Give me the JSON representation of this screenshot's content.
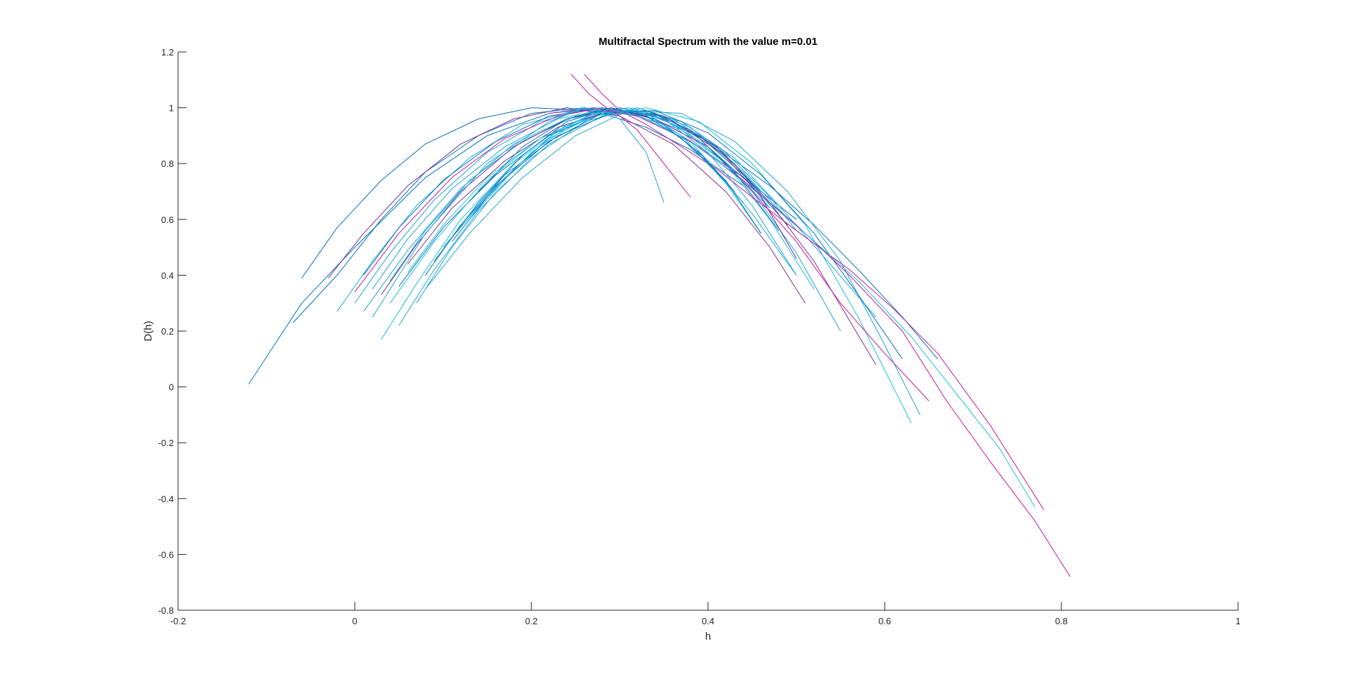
{
  "chart_data": {
    "type": "line",
    "title": "Multifractal Spectrum with the value m=0.01",
    "xlabel": "h",
    "ylabel": "D(h)",
    "xlim": [
      -0.2,
      1
    ],
    "ylim": [
      -0.8,
      1.2
    ],
    "xticks": [
      -0.2,
      0,
      0.2,
      0.4,
      0.6,
      0.8,
      1
    ],
    "yticks": [
      -0.8,
      -0.6,
      -0.4,
      -0.2,
      0,
      0.2,
      0.4,
      0.6,
      0.8,
      1,
      1.2
    ],
    "xtick_labels": [
      "-0.2",
      "0",
      "0.2",
      "0.4",
      "0.6",
      "0.8",
      "1"
    ],
    "ytick_labels": [
      "-0.8",
      "-0.6",
      "-0.4",
      "-0.2",
      "0",
      "0.2",
      "0.4",
      "0.6",
      "0.8",
      "1",
      "1.2"
    ],
    "grid": false,
    "box": false,
    "colors": {
      "blue": "#0072BD",
      "cyan": "#1AA7D9",
      "light_cyan": "#18C0DE",
      "purple": "#7E2F8E",
      "magenta": "#C2189C",
      "axis": "#262626"
    },
    "series": [
      {
        "color": "blue",
        "x": [
          -0.12,
          -0.06,
          0.0,
          0.08,
          0.15,
          0.22,
          0.28,
          0.34,
          0.4,
          0.47,
          0.52,
          0.57,
          0.62,
          0.66
        ],
        "y": [
          0.01,
          0.3,
          0.5,
          0.75,
          0.9,
          0.98,
          1.0,
          0.97,
          0.88,
          0.72,
          0.58,
          0.42,
          0.25,
          0.1
        ]
      },
      {
        "color": "blue",
        "x": [
          -0.06,
          -0.02,
          0.03,
          0.08,
          0.14,
          0.2,
          0.27,
          0.33,
          0.38,
          0.44
        ],
        "y": [
          0.39,
          0.57,
          0.74,
          0.87,
          0.96,
          1.0,
          0.99,
          0.93,
          0.85,
          0.72
        ]
      },
      {
        "color": "blue",
        "x": [
          -0.07,
          -0.02,
          0.03,
          0.08,
          0.14,
          0.2,
          0.26,
          0.32,
          0.38,
          0.44,
          0.5
        ],
        "y": [
          0.23,
          0.4,
          0.6,
          0.77,
          0.9,
          0.98,
          1.0,
          0.97,
          0.88,
          0.75,
          0.6
        ]
      },
      {
        "color": "cyan",
        "x": [
          -0.02,
          0.02,
          0.07,
          0.13,
          0.19,
          0.25,
          0.31,
          0.37,
          0.42,
          0.47
        ],
        "y": [
          0.27,
          0.45,
          0.65,
          0.82,
          0.94,
          0.99,
          0.99,
          0.92,
          0.8,
          0.64
        ]
      },
      {
        "color": "cyan",
        "x": [
          0.0,
          0.04,
          0.09,
          0.15,
          0.21,
          0.27,
          0.33,
          0.39,
          0.44,
          0.49
        ],
        "y": [
          0.3,
          0.48,
          0.67,
          0.84,
          0.95,
          1.0,
          0.98,
          0.9,
          0.77,
          0.6
        ]
      },
      {
        "color": "blue",
        "x": [
          0.01,
          0.05,
          0.1,
          0.16,
          0.22,
          0.28,
          0.34,
          0.4,
          0.45
        ],
        "y": [
          0.4,
          0.57,
          0.74,
          0.88,
          0.97,
          1.0,
          0.96,
          0.86,
          0.72
        ]
      },
      {
        "color": "light_cyan",
        "x": [
          0.03,
          0.07,
          0.12,
          0.18,
          0.24,
          0.3,
          0.36,
          0.41,
          0.46
        ],
        "y": [
          0.17,
          0.37,
          0.6,
          0.8,
          0.94,
          1.0,
          0.96,
          0.86,
          0.7
        ]
      },
      {
        "color": "cyan",
        "x": [
          0.05,
          0.09,
          0.14,
          0.2,
          0.26,
          0.32,
          0.37,
          0.42,
          0.47,
          0.5
        ],
        "y": [
          0.22,
          0.42,
          0.63,
          0.82,
          0.95,
          1.0,
          0.95,
          0.84,
          0.68,
          0.56
        ]
      },
      {
        "color": "cyan",
        "x": [
          0.07,
          0.11,
          0.16,
          0.22,
          0.28,
          0.33,
          0.38,
          0.43,
          0.47
        ],
        "y": [
          0.3,
          0.5,
          0.7,
          0.87,
          0.97,
          0.99,
          0.93,
          0.8,
          0.64
        ]
      },
      {
        "color": "blue",
        "x": [
          0.08,
          0.12,
          0.17,
          0.23,
          0.29,
          0.34,
          0.39,
          0.44,
          0.49
        ],
        "y": [
          0.4,
          0.58,
          0.76,
          0.9,
          0.98,
          0.98,
          0.9,
          0.76,
          0.58
        ]
      },
      {
        "color": "cyan",
        "x": [
          0.02,
          0.06,
          0.11,
          0.17,
          0.23,
          0.29,
          0.35,
          0.4,
          0.45,
          0.5,
          0.55
        ],
        "y": [
          0.35,
          0.53,
          0.71,
          0.86,
          0.96,
          1.0,
          0.96,
          0.86,
          0.7,
          0.48,
          0.2
        ]
      },
      {
        "color": "cyan",
        "x": [
          0.04,
          0.08,
          0.13,
          0.19,
          0.25,
          0.31,
          0.37,
          0.43,
          0.48,
          0.53,
          0.59
        ],
        "y": [
          0.38,
          0.56,
          0.74,
          0.88,
          0.97,
          1.0,
          0.95,
          0.82,
          0.65,
          0.47,
          0.25
        ]
      },
      {
        "color": "light_cyan",
        "x": [
          0.06,
          0.1,
          0.15,
          0.21,
          0.27,
          0.33,
          0.39,
          0.45,
          0.51,
          0.57,
          0.63
        ],
        "y": [
          0.41,
          0.58,
          0.75,
          0.89,
          0.97,
          1.0,
          0.95,
          0.8,
          0.58,
          0.25,
          -0.13
        ]
      },
      {
        "color": "cyan",
        "x": [
          0.08,
          0.13,
          0.19,
          0.25,
          0.31,
          0.37,
          0.43,
          0.49,
          0.55,
          0.6,
          0.64
        ],
        "y": [
          0.35,
          0.55,
          0.75,
          0.9,
          0.99,
          0.98,
          0.88,
          0.7,
          0.45,
          0.15,
          -0.1
        ]
      },
      {
        "color": "purple",
        "x": [
          -0.03,
          0.01,
          0.06,
          0.12,
          0.18,
          0.24,
          0.3,
          0.36,
          0.42,
          0.47,
          0.51
        ],
        "y": [
          0.39,
          0.55,
          0.72,
          0.87,
          0.96,
          1.0,
          0.97,
          0.87,
          0.7,
          0.5,
          0.3
        ]
      },
      {
        "color": "purple",
        "x": [
          0.03,
          0.07,
          0.12,
          0.18,
          0.24,
          0.3,
          0.36,
          0.42,
          0.47,
          0.52,
          0.59
        ],
        "y": [
          0.33,
          0.51,
          0.7,
          0.86,
          0.96,
          1.0,
          0.95,
          0.83,
          0.66,
          0.45,
          0.08
        ]
      },
      {
        "color": "magenta",
        "x": [
          0.0,
          0.05,
          0.11,
          0.17,
          0.23,
          0.28,
          0.34,
          0.4,
          0.45,
          0.5,
          0.55,
          0.6,
          0.65
        ],
        "y": [
          0.34,
          0.55,
          0.75,
          0.89,
          0.97,
          1.0,
          0.96,
          0.86,
          0.7,
          0.52,
          0.3,
          0.12,
          -0.05
        ]
      },
      {
        "color": "blue",
        "x": [
          0.05,
          0.1,
          0.16,
          0.22,
          0.28,
          0.34,
          0.4,
          0.46,
          0.52,
          0.57,
          0.62
        ],
        "y": [
          0.36,
          0.57,
          0.76,
          0.9,
          0.98,
          0.99,
          0.91,
          0.76,
          0.55,
          0.33,
          0.1
        ]
      },
      {
        "color": "cyan",
        "x": [
          0.1,
          0.15,
          0.2,
          0.25,
          0.3,
          0.35,
          0.4,
          0.45,
          0.5
        ],
        "y": [
          0.5,
          0.68,
          0.84,
          0.95,
          1.0,
          0.96,
          0.84,
          0.65,
          0.4
        ]
      },
      {
        "color": "light_cyan",
        "x": [
          0.12,
          0.17,
          0.22,
          0.27,
          0.32,
          0.37,
          0.42,
          0.47,
          0.52
        ],
        "y": [
          0.58,
          0.75,
          0.89,
          0.97,
          0.99,
          0.93,
          0.8,
          0.6,
          0.35
        ]
      },
      {
        "color": "blue",
        "x": [
          0.09,
          0.14,
          0.19,
          0.24,
          0.29,
          0.34,
          0.39,
          0.44
        ],
        "y": [
          0.45,
          0.66,
          0.83,
          0.95,
          1.0,
          0.96,
          0.84,
          0.66
        ]
      },
      {
        "color": "cyan",
        "x": [
          0.01,
          0.06,
          0.12,
          0.18,
          0.24,
          0.3,
          0.35,
          0.4,
          0.45,
          0.5
        ],
        "y": [
          0.27,
          0.49,
          0.71,
          0.87,
          0.96,
          0.99,
          0.94,
          0.81,
          0.62,
          0.4
        ]
      },
      {
        "color": "purple",
        "x": [
          0.06,
          0.11,
          0.17,
          0.23,
          0.29,
          0.35,
          0.41,
          0.46,
          0.5
        ],
        "y": [
          0.44,
          0.64,
          0.81,
          0.93,
          0.99,
          0.97,
          0.86,
          0.68,
          0.46
        ]
      },
      {
        "color": "blue",
        "x": [
          0.11,
          0.16,
          0.22,
          0.28,
          0.33,
          0.38,
          0.43,
          0.48
        ],
        "y": [
          0.52,
          0.72,
          0.88,
          0.98,
          0.99,
          0.92,
          0.77,
          0.56
        ]
      },
      {
        "color": "cyan",
        "x": [
          0.13,
          0.18,
          0.23,
          0.28,
          0.33,
          0.38,
          0.43
        ],
        "y": [
          0.6,
          0.78,
          0.92,
          0.99,
          0.98,
          0.88,
          0.7
        ]
      },
      {
        "color": "light_cyan",
        "x": [
          0.04,
          0.09,
          0.15,
          0.21,
          0.27,
          0.32,
          0.37,
          0.42,
          0.46
        ],
        "y": [
          0.3,
          0.52,
          0.74,
          0.89,
          0.98,
          0.99,
          0.9,
          0.73,
          0.55
        ]
      },
      {
        "color": "magenta",
        "x": [
          0.245,
          0.265,
          0.285,
          0.3,
          0.32,
          0.35,
          0.38
        ],
        "y": [
          1.12,
          1.05,
          1.0,
          0.97,
          0.92,
          0.8,
          0.68
        ]
      },
      {
        "color": "magenta",
        "x": [
          0.26,
          0.28,
          0.3,
          0.33,
          0.37,
          0.41,
          0.45,
          0.5,
          0.56,
          0.61,
          0.66,
          0.72,
          0.78
        ],
        "y": [
          1.12,
          1.05,
          0.99,
          0.94,
          0.86,
          0.78,
          0.68,
          0.56,
          0.42,
          0.28,
          0.12,
          -0.14,
          -0.44
        ]
      },
      {
        "color": "magenta",
        "x": [
          0.22,
          0.27,
          0.32,
          0.38,
          0.44,
          0.5,
          0.56,
          0.62,
          0.67,
          0.72,
          0.77,
          0.81
        ],
        "y": [
          0.98,
          1.0,
          0.97,
          0.88,
          0.74,
          0.58,
          0.4,
          0.2,
          -0.05,
          -0.27,
          -0.48,
          -0.68
        ]
      },
      {
        "color": "light_cyan",
        "x": [
          0.23,
          0.28,
          0.33,
          0.39,
          0.45,
          0.51,
          0.57,
          0.63,
          0.68,
          0.73,
          0.77
        ],
        "y": [
          0.99,
          1.0,
          0.96,
          0.86,
          0.71,
          0.55,
          0.38,
          0.18,
          -0.02,
          -0.22,
          -0.43
        ]
      },
      {
        "color": "cyan",
        "x": [
          0.02,
          0.08,
          0.15,
          0.22,
          0.26,
          0.3,
          0.33,
          0.35
        ],
        "y": [
          0.25,
          0.55,
          0.8,
          0.95,
          1.0,
          0.96,
          0.84,
          0.66
        ]
      },
      {
        "color": "blue",
        "x": [
          0.14,
          0.19,
          0.24,
          0.29,
          0.33,
          0.37,
          0.42,
          0.46
        ],
        "y": [
          0.7,
          0.86,
          0.96,
          1.0,
          0.97,
          0.89,
          0.74,
          0.55
        ]
      }
    ]
  }
}
